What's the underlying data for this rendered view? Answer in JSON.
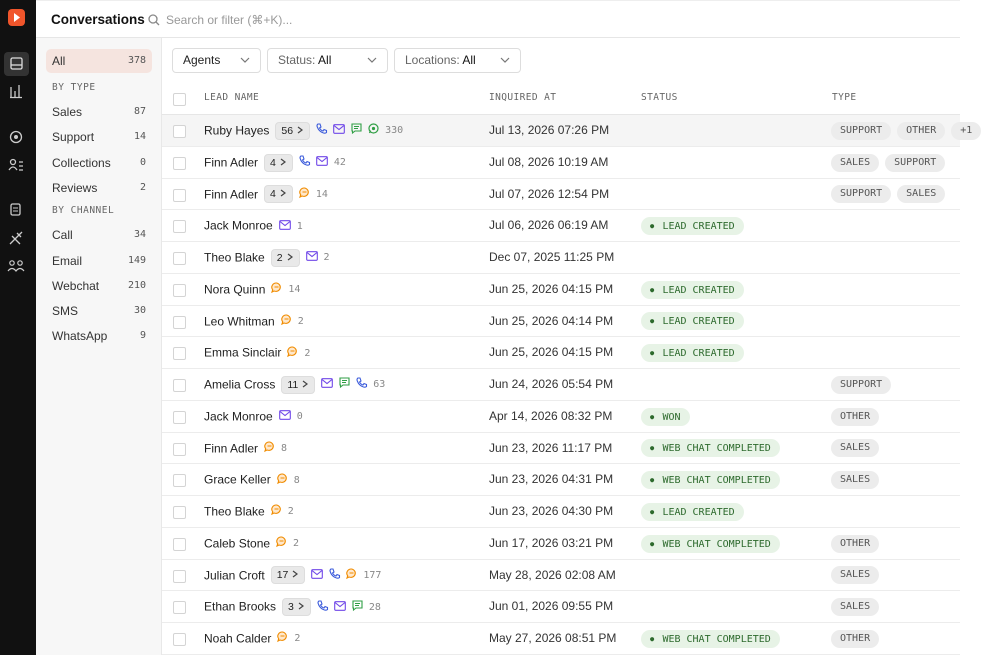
{
  "header": {
    "title": "Conversations",
    "search_placeholder": "Search or filter (⌘+K)..."
  },
  "filters": {
    "all": {
      "label": "All",
      "count": 378
    },
    "by_type": {
      "heading": "BY TYPE",
      "items": [
        {
          "label": "Sales",
          "count": 87
        },
        {
          "label": "Support",
          "count": 14
        },
        {
          "label": "Collections",
          "count": 0
        },
        {
          "label": "Reviews",
          "count": 2
        }
      ]
    },
    "by_channel": {
      "heading": "BY CHANNEL",
      "items": [
        {
          "label": "Call",
          "count": 34
        },
        {
          "label": "Email",
          "count": 149
        },
        {
          "label": "Webchat",
          "count": 210
        },
        {
          "label": "SMS",
          "count": 30
        },
        {
          "label": "WhatsApp",
          "count": 9
        }
      ]
    }
  },
  "toolbar": {
    "agents": "Agents",
    "status": {
      "label": "Status:",
      "value": "All"
    },
    "locations": {
      "label": "Locations:",
      "value": "All"
    }
  },
  "table": {
    "columns": [
      "LEAD NAME",
      "INQUIRED AT",
      "STATUS",
      "TYPE"
    ],
    "rows": [
      {
        "name": "Ruby Hayes",
        "threads": 56,
        "messages": 330,
        "inquired_at": "Jul 13, 2026 07:26 PM",
        "types": [
          "SUPPORT",
          "OTHER",
          "+1"
        ]
      },
      {
        "name": "Finn Adler",
        "threads": 4,
        "messages": 42,
        "inquired_at": "Jul 08, 2026 10:19 AM",
        "types": [
          "SALES",
          "SUPPORT"
        ]
      },
      {
        "name": "Finn Adler",
        "threads": 4,
        "messages": 14,
        "inquired_at": "Jul 07, 2026 12:54 PM",
        "types": [
          "SUPPORT",
          "SALES"
        ]
      },
      {
        "name": "Jack Monroe",
        "messages": 1,
        "inquired_at": "Jul 06, 2026 06:19 AM",
        "status": "LEAD CREATED"
      },
      {
        "name": "Theo Blake",
        "threads": 2,
        "messages": 2,
        "inquired_at": "Dec 07, 2025 11:25 PM"
      },
      {
        "name": "Nora Quinn",
        "messages": 14,
        "inquired_at": "Jun 25, 2026 04:15 PM",
        "status": "LEAD CREATED"
      },
      {
        "name": "Leo Whitman",
        "messages": 2,
        "inquired_at": "Jun 25, 2026 04:14 PM",
        "status": "LEAD CREATED"
      },
      {
        "name": "Emma Sinclair",
        "messages": 2,
        "inquired_at": "Jun 25, 2026 04:15 PM",
        "status": "LEAD CREATED"
      },
      {
        "name": "Amelia Cross",
        "threads": 11,
        "messages": 63,
        "inquired_at": "Jun 24, 2026 05:54 PM",
        "types": [
          "SUPPORT"
        ]
      },
      {
        "name": "Jack Monroe",
        "messages": 0,
        "inquired_at": "Apr 14, 2026 08:32 PM",
        "status": "WON",
        "types": [
          "OTHER"
        ]
      },
      {
        "name": "Finn Adler",
        "messages": 8,
        "inquired_at": "Jun 23, 2026 11:17 PM",
        "status": "WEB CHAT COMPLETED",
        "types": [
          "SALES"
        ]
      },
      {
        "name": "Grace Keller",
        "messages": 8,
        "inquired_at": "Jun 23, 2026 04:31 PM",
        "status": "WEB CHAT COMPLETED",
        "types": [
          "SALES"
        ]
      },
      {
        "name": "Theo Blake",
        "messages": 2,
        "inquired_at": "Jun 23, 2026 04:30 PM",
        "status": "LEAD CREATED"
      },
      {
        "name": "Caleb Stone",
        "messages": 2,
        "inquired_at": "Jun 17, 2026 03:21 PM",
        "status": "WEB CHAT COMPLETED",
        "types": [
          "OTHER"
        ]
      },
      {
        "name": "Julian Croft",
        "threads": 17,
        "messages": 177,
        "inquired_at": "May 28, 2026 02:08 AM",
        "types": [
          "SALES"
        ]
      },
      {
        "name": "Ethan Brooks",
        "threads": 3,
        "messages": 28,
        "inquired_at": "Jun 01, 2026 09:55 PM",
        "types": [
          "SALES"
        ]
      },
      {
        "name": "Noah Calder",
        "messages": 2,
        "inquired_at": "May 27, 2026 08:51 PM",
        "status": "WEB CHAT COMPLETED",
        "types": [
          "OTHER"
        ]
      }
    ]
  }
}
